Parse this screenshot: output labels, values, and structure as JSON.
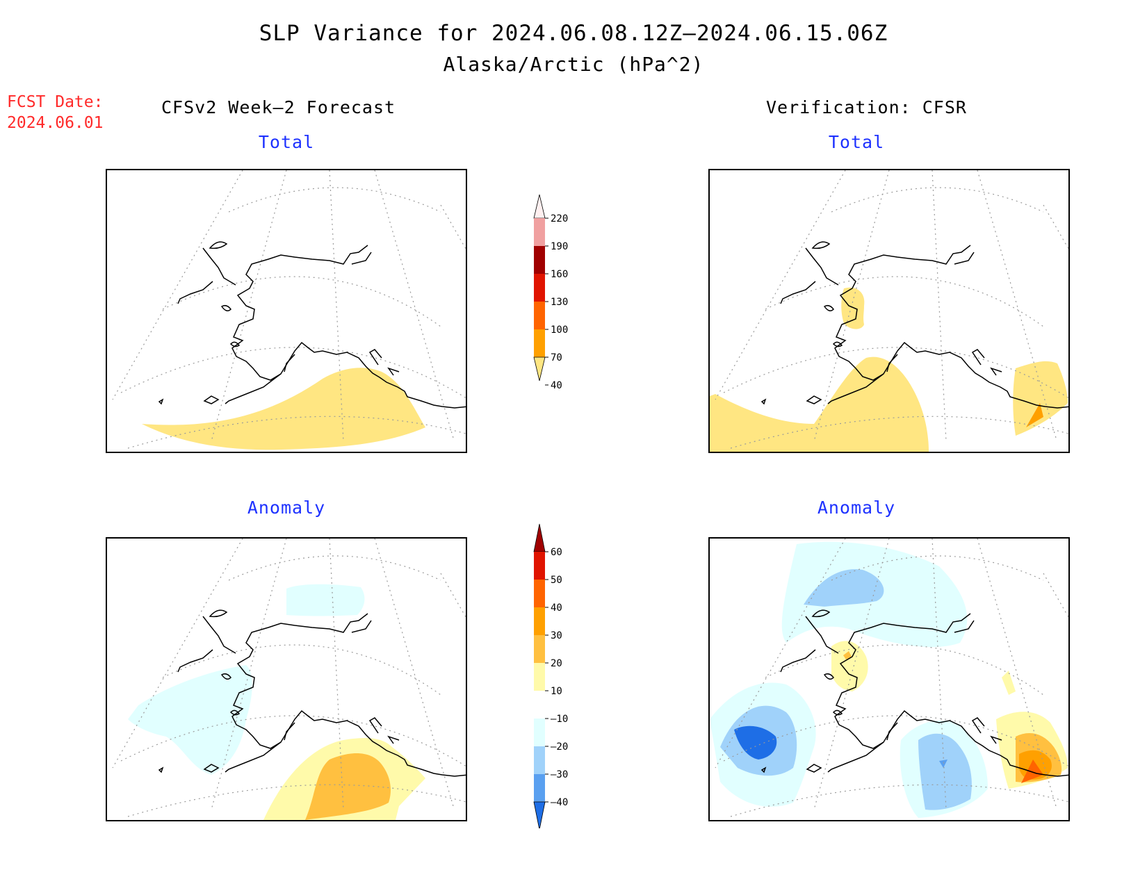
{
  "header": {
    "title": "SLP Variance for 2024.06.08.12Z–2024.06.15.06Z",
    "subtitle": "Alaska/Arctic (hPa^2)",
    "fcst_date_label": "FCST Date:",
    "fcst_date_value": "2024.06.01"
  },
  "columns": {
    "left": "CFSv2 Week–2 Forecast",
    "right": "Verification: CFSR"
  },
  "panels": [
    {
      "id": "forecast-total",
      "label": "Total"
    },
    {
      "id": "verification-total",
      "label": "Total"
    },
    {
      "id": "forecast-anomaly",
      "label": "Anomaly"
    },
    {
      "id": "verification-anomaly",
      "label": "Anomaly"
    }
  ],
  "colorbars": {
    "total": {
      "ticks": [
        "220",
        "190",
        "160",
        "130",
        "100",
        "70",
        "40"
      ],
      "colors": [
        "#fff0f0",
        "#f0a0a0",
        "#a00000",
        "#e01400",
        "#ff6400",
        "#ffa000",
        "#ffe682"
      ]
    },
    "anomaly": {
      "ticks": [
        "60",
        "50",
        "40",
        "30",
        "20",
        "10",
        "–10",
        "–20",
        "–30",
        "–40"
      ],
      "colors": [
        "#a00000",
        "#e01400",
        "#ff6400",
        "#ffa000",
        "#ffc040",
        "#fffaaa",
        "#ffffff",
        "#e1ffff",
        "#a0d2fa",
        "#5aa0f0",
        "#1e6ee6"
      ]
    }
  },
  "fill_colors": {
    "yellow": "#ffe682",
    "light_yellow": "#fffaaa",
    "orange_light": "#ffc040",
    "orange": "#ffa000",
    "dark_orange": "#ff6400",
    "light_cyan": "#e1ffff",
    "light_blue": "#a0d2fa",
    "medium_blue": "#5aa0f0",
    "dark_blue": "#1e6ee6"
  }
}
